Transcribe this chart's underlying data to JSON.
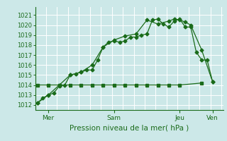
{
  "bg_color": "#cce8e8",
  "grid_color": "#ffffff",
  "line_color": "#1a6b1a",
  "title": "Pression niveau de la mer( hPa )",
  "xlabel_ticks": [
    "Mer",
    "Sam",
    "Jeu",
    "Ven"
  ],
  "xlabel_tick_positions": [
    0.5,
    3.5,
    6.5,
    8.0
  ],
  "ylim": [
    1011.5,
    1021.8
  ],
  "yticks": [
    1012,
    1013,
    1014,
    1015,
    1016,
    1017,
    1018,
    1019,
    1020,
    1021
  ],
  "xlim": [
    -0.1,
    8.5
  ],
  "series1_x": [
    0,
    0.25,
    0.5,
    0.75,
    1.0,
    1.25,
    1.5,
    1.75,
    2.0,
    2.25,
    2.5,
    2.75,
    3.0,
    3.25,
    3.5,
    3.75,
    4.0,
    4.25,
    4.5,
    4.75,
    5.0,
    5.25,
    5.5,
    5.75,
    6.0,
    6.25,
    6.5,
    6.75,
    7.0,
    7.25,
    7.5,
    7.75,
    8.0
  ],
  "series1_y": [
    1012.2,
    1012.7,
    1013.0,
    1013.2,
    1013.9,
    1014.0,
    1015.0,
    1015.1,
    1015.3,
    1015.5,
    1015.5,
    1016.5,
    1017.8,
    1018.3,
    1018.4,
    1018.3,
    1018.4,
    1018.8,
    1018.8,
    1019.0,
    1019.1,
    1020.5,
    1020.6,
    1020.1,
    1019.8,
    1020.4,
    1020.6,
    1019.8,
    1019.8,
    1017.3,
    1016.5,
    1016.5,
    1014.3
  ],
  "series2_x": [
    0,
    0.5,
    1.0,
    1.5,
    2.0,
    2.5,
    3.0,
    3.5,
    4.0,
    4.5,
    5.0,
    5.5,
    6.0,
    6.25,
    6.5,
    6.75,
    7.0,
    7.5,
    8.0
  ],
  "series2_y": [
    1012.2,
    1013.0,
    1014.0,
    1015.0,
    1015.3,
    1016.0,
    1017.8,
    1018.5,
    1018.9,
    1019.1,
    1020.5,
    1020.1,
    1020.4,
    1020.6,
    1020.5,
    1020.3,
    1020.0,
    1017.5,
    1014.3
  ],
  "series3_x": [
    0,
    0.5,
    1.0,
    1.5,
    2.0,
    2.5,
    3.0,
    3.5,
    4.0,
    4.5,
    5.0,
    5.5,
    6.0,
    6.5,
    7.5
  ],
  "series3_y": [
    1014.0,
    1014.0,
    1014.0,
    1014.0,
    1014.0,
    1014.0,
    1014.0,
    1014.0,
    1014.0,
    1014.0,
    1014.0,
    1014.0,
    1014.0,
    1014.0,
    1014.2
  ],
  "hgrid_step": 1,
  "vgrid_step": 0.5
}
